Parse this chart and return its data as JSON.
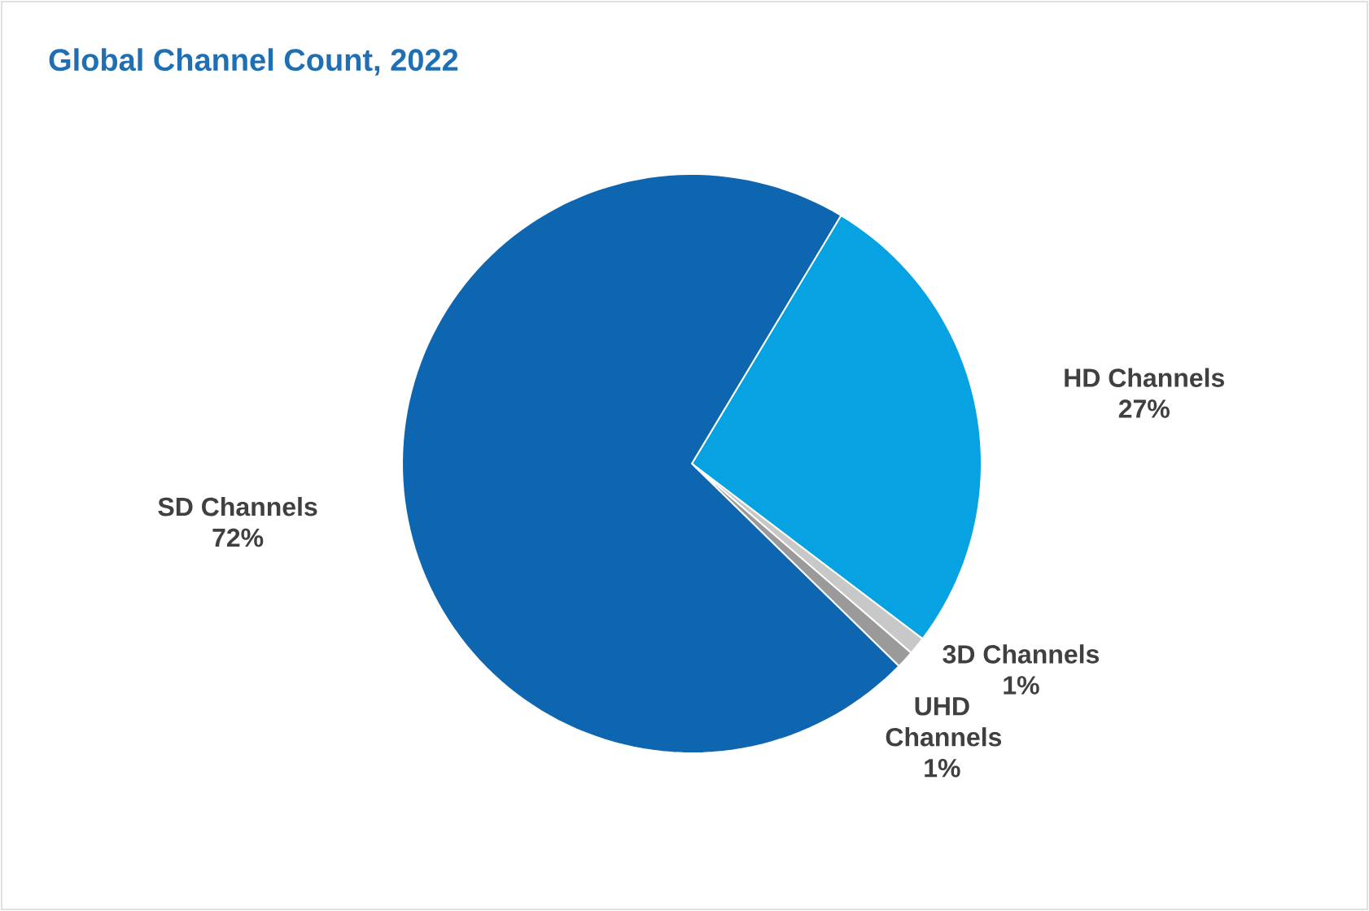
{
  "chart_data": {
    "type": "pie",
    "title": "Global Channel Count, 2022",
    "categories": [
      "HD Channels",
      "3D Channels",
      "UHD Channels",
      "SD Channels"
    ],
    "values": [
      27,
      1,
      1,
      72
    ],
    "value_labels": [
      "27%",
      "1%",
      "1%",
      "72%"
    ],
    "colors": [
      "#07a2e2",
      "#c8c8c8",
      "#9a9a9a",
      "#0e65b0"
    ]
  }
}
